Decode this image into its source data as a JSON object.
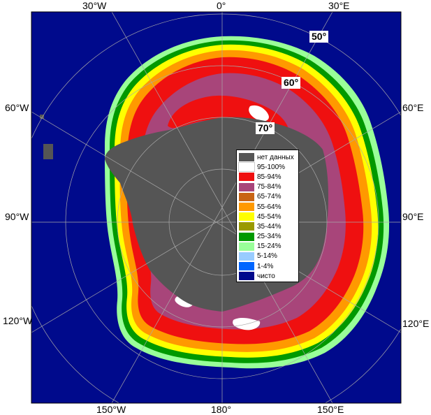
{
  "map": {
    "longitude_labels": {
      "top_30w": "30°W",
      "top_0": "0°",
      "top_30e": "30°E",
      "left_60w": "60°W",
      "left_90w": "90°W",
      "left_120w": "120°W",
      "right_60e": "60°E",
      "right_90e": "90°E",
      "right_120e": "120°E",
      "bottom_150w": "150°W",
      "bottom_180": "180°",
      "bottom_150e": "150°E"
    },
    "latitude_labels": {
      "lat_50": "50°",
      "lat_60": "60°",
      "lat_70": "70°"
    },
    "colors": {
      "open_water": "#000a8c",
      "no_data": "#555555",
      "frame": "#000000",
      "grid": "#a8a8a8"
    }
  },
  "legend": {
    "items": [
      {
        "label": "нет данных",
        "color": "#555555"
      },
      {
        "label": "95-100%",
        "color": "#ffffff"
      },
      {
        "label": "85-94%",
        "color": "#ef1010"
      },
      {
        "label": "75-84%",
        "color": "#a8457a"
      },
      {
        "label": "65-74%",
        "color": "#c86414"
      },
      {
        "label": "55-64%",
        "color": "#ff9900"
      },
      {
        "label": "45-54%",
        "color": "#ffff00"
      },
      {
        "label": "35-44%",
        "color": "#9a9a00"
      },
      {
        "label": "25-34%",
        "color": "#009900"
      },
      {
        "label": "15-24%",
        "color": "#99ff99"
      },
      {
        "label": "5-14%",
        "color": "#99ccff"
      },
      {
        "label": "1-4%",
        "color": "#0066ff"
      },
      {
        "label": "чисто",
        "color": "#000a8c"
      }
    ]
  }
}
